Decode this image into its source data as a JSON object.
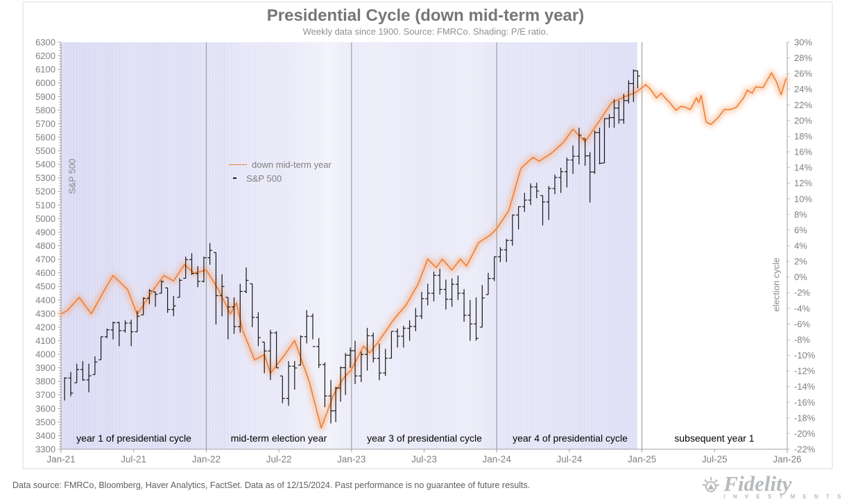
{
  "title": "Presidential Cycle (down mid-term year)",
  "subtitle": "Weekly data since 1900. Source: FMRCo. Shading: P/E ratio.",
  "footer": "Data source: FMRCo, Bloomberg, Haver Analytics, FactSet. Data as of 12/15/2024. Past performance is no guarantee of future results.",
  "brand": {
    "name": "Fidelity",
    "subtext": "I N V E S T M E N T S"
  },
  "legend": [
    {
      "label": "down mid-term year",
      "color": "#ee7f35",
      "type": "line"
    },
    {
      "label": "S&P 500",
      "color": "#1c1c1c",
      "type": "bar"
    }
  ],
  "colors": {
    "cycle_line": "#ee7f35",
    "cycle_glow": "#f7a468",
    "sp_bars": "#1c1c1c",
    "shade_dark": "#d6d6f3",
    "shade_light": "#f8f8fd",
    "divider": "#909090",
    "axis": "#a0a0a0",
    "tick_text": "#7f7f7f"
  },
  "chart_data": {
    "type": "line",
    "title": "Presidential Cycle (down mid-term year)",
    "subtitle": "Weekly data since 1900. Source: FMRCo. Shading: P/E ratio.",
    "x_axis": {
      "unit": "months since Jan-2021",
      "range": [
        0,
        60
      ],
      "tick_labels": [
        "Jan-21",
        "Jul-21",
        "Jan-22",
        "Jul-22",
        "Jan-23",
        "Jul-23",
        "Jan-24",
        "Jul-24",
        "Jan-25",
        "Jul-25",
        "Jan-26"
      ],
      "tick_positions": [
        0,
        6,
        12,
        18,
        24,
        30,
        36,
        42,
        48,
        54,
        60
      ]
    },
    "left_axis": {
      "label": "S&P 500",
      "min": 3300,
      "max": 6300,
      "tick_step": 100,
      "ticks": [
        6300,
        6200,
        6100,
        6000,
        5900,
        5800,
        5700,
        5600,
        5500,
        5400,
        5300,
        5200,
        5100,
        5000,
        4900,
        4800,
        4700,
        4600,
        4500,
        4400,
        4300,
        4200,
        4100,
        4000,
        3900,
        3800,
        3700,
        3600,
        3500,
        3400,
        3300
      ]
    },
    "right_axis": {
      "label": "election cycle",
      "min": -22,
      "max": 30,
      "tick_step": 2,
      "format": "percent",
      "ticks": [
        30,
        28,
        26,
        24,
        22,
        20,
        18,
        16,
        14,
        12,
        10,
        8,
        6,
        4,
        2,
        0,
        -2,
        -4,
        -6,
        -8,
        -10,
        -12,
        -14,
        -16,
        -18,
        -20,
        -22
      ]
    },
    "sections": [
      {
        "label": "year 1 of presidential cycle",
        "start": 0,
        "end": 12
      },
      {
        "label": "mid-term election year",
        "start": 12,
        "end": 24
      },
      {
        "label": "year 3 of presidential cycle",
        "start": 24,
        "end": 36
      },
      {
        "label": "year 4 of presidential cycle",
        "start": 36,
        "end": 48
      },
      {
        "label": "subsequent year 1",
        "start": 48,
        "end": 60
      }
    ],
    "shading": {
      "meaning": "P/E ratio (weekly, darker = higher)",
      "start": 0,
      "end": 47.6,
      "stops": [
        [
          0,
          0.8
        ],
        [
          1,
          0.9
        ],
        [
          2.5,
          0.82
        ],
        [
          4,
          0.86
        ],
        [
          6,
          0.72
        ],
        [
          7.5,
          0.8
        ],
        [
          9,
          0.7
        ],
        [
          10.5,
          0.76
        ],
        [
          12,
          0.62
        ],
        [
          13.5,
          0.68
        ],
        [
          15,
          0.52
        ],
        [
          17,
          0.46
        ],
        [
          18,
          0.5
        ],
        [
          19.5,
          0.36
        ],
        [
          21,
          0.28
        ],
        [
          22,
          0.18
        ],
        [
          23,
          0.3
        ],
        [
          24,
          0.38
        ],
        [
          26,
          0.33
        ],
        [
          28,
          0.42
        ],
        [
          30,
          0.48
        ],
        [
          32,
          0.4
        ],
        [
          34,
          0.36
        ],
        [
          36,
          0.55
        ],
        [
          38,
          0.6
        ],
        [
          40,
          0.58
        ],
        [
          42,
          0.66
        ],
        [
          44,
          0.7
        ],
        [
          46,
          0.74
        ],
        [
          47.6,
          0.78
        ]
      ]
    },
    "series": [
      {
        "name": "down mid-term year",
        "axis": "right",
        "style": "line-glow",
        "color": "#ee7f35",
        "points": [
          [
            0,
            -4.7
          ],
          [
            0.5,
            -4.3
          ],
          [
            1.5,
            -2.6
          ],
          [
            2.5,
            -4.7
          ],
          [
            3.5,
            -1.9
          ],
          [
            4.3,
            0.2
          ],
          [
            5.5,
            -1.6
          ],
          [
            6.3,
            -4.8
          ],
          [
            7.5,
            -1.9
          ],
          [
            8.5,
            0.2
          ],
          [
            9.3,
            -0.5
          ],
          [
            10.2,
            1.6
          ],
          [
            11,
            0.5
          ],
          [
            12,
            0.9
          ],
          [
            13,
            -1.6
          ],
          [
            14,
            -4.7
          ],
          [
            14.5,
            -3.3
          ],
          [
            15,
            -6.8
          ],
          [
            16,
            -10.6
          ],
          [
            16.8,
            -9.9
          ],
          [
            17.3,
            -12.3
          ],
          [
            18.5,
            -9.9
          ],
          [
            19.3,
            -8.1
          ],
          [
            20.5,
            -13.3
          ],
          [
            21.5,
            -19.3
          ],
          [
            22.5,
            -15.1
          ],
          [
            23.3,
            -13
          ],
          [
            24,
            -11.8
          ],
          [
            25,
            -8.8
          ],
          [
            25.5,
            -9.7
          ],
          [
            26.3,
            -8.1
          ],
          [
            27.5,
            -5.4
          ],
          [
            28.5,
            -3.6
          ],
          [
            29.5,
            -0.9
          ],
          [
            30.3,
            2.3
          ],
          [
            31,
            1.2
          ],
          [
            31.5,
            2.3
          ],
          [
            32.3,
            0.9
          ],
          [
            33,
            2.3
          ],
          [
            33.5,
            1.4
          ],
          [
            34.5,
            4.4
          ],
          [
            35.5,
            5.4
          ],
          [
            36,
            6.2
          ],
          [
            37,
            8.5
          ],
          [
            38,
            13.9
          ],
          [
            39,
            15.3
          ],
          [
            39.5,
            14.8
          ],
          [
            40.5,
            15.8
          ],
          [
            41.5,
            17.2
          ],
          [
            42.3,
            18.9
          ],
          [
            43.3,
            17.3
          ],
          [
            44.5,
            20
          ],
          [
            45.5,
            22.3
          ],
          [
            46.5,
            23
          ],
          [
            47.5,
            23.6
          ],
          [
            48,
            24.2
          ],
          [
            48.3,
            24.6
          ],
          [
            48.7,
            24
          ],
          [
            49.2,
            22.9
          ],
          [
            49.6,
            23.5
          ],
          [
            49.9,
            22.9
          ],
          [
            50.3,
            22.3
          ],
          [
            50.8,
            21.3
          ],
          [
            51.2,
            21.8
          ],
          [
            51.6,
            21.7
          ],
          [
            52,
            21.4
          ],
          [
            52.5,
            22.9
          ],
          [
            52.7,
            22.3
          ],
          [
            52.9,
            23.2
          ],
          [
            53.3,
            19.8
          ],
          [
            53.7,
            19.5
          ],
          [
            54.3,
            20.4
          ],
          [
            54.8,
            21.4
          ],
          [
            55.3,
            21.4
          ],
          [
            55.8,
            21.7
          ],
          [
            56.4,
            22.9
          ],
          [
            56.7,
            23.9
          ],
          [
            57.1,
            23.5
          ],
          [
            57.4,
            24.3
          ],
          [
            58,
            24.2
          ],
          [
            58.7,
            26.1
          ],
          [
            59.1,
            25
          ],
          [
            59.5,
            23.3
          ],
          [
            59.9,
            25.4
          ]
        ]
      },
      {
        "name": "S&P 500",
        "axis": "left",
        "style": "hlc-bars",
        "color": "#1c1c1c",
        "bar_week_offset": 0.3,
        "bars": [
          [
            0,
            3660,
            3830,
            3825
          ],
          [
            0.5,
            3690,
            3870,
            3714
          ],
          [
            1,
            3790,
            3930,
            3887
          ],
          [
            1.5,
            3805,
            3950,
            3811
          ],
          [
            2,
            3720,
            3930,
            3841
          ],
          [
            2.5,
            3850,
            3985,
            3943
          ],
          [
            3,
            3960,
            4130,
            4129
          ],
          [
            3.5,
            4120,
            4190,
            4180
          ],
          [
            4,
            4110,
            4240,
            4233
          ],
          [
            4.5,
            4060,
            4240,
            4174
          ],
          [
            5,
            4160,
            4250,
            4230
          ],
          [
            5.5,
            4060,
            4255,
            4166
          ],
          [
            6,
            4165,
            4320,
            4280
          ],
          [
            6.5,
            4290,
            4420,
            4412
          ],
          [
            7,
            4370,
            4480,
            4468
          ],
          [
            7.5,
            4350,
            4460,
            4442
          ],
          [
            8,
            4450,
            4545,
            4536
          ],
          [
            8.5,
            4306,
            4490,
            4330
          ],
          [
            9,
            4280,
            4430,
            4357
          ],
          [
            9.5,
            4420,
            4560,
            4545
          ],
          [
            10,
            4560,
            4720,
            4698
          ],
          [
            10.5,
            4585,
            4745,
            4595
          ],
          [
            11,
            4495,
            4650,
            4538
          ],
          [
            11.5,
            4530,
            4720,
            4712
          ],
          [
            12,
            4660,
            4820,
            4766
          ],
          [
            12.5,
            4220,
            4750,
            4432
          ],
          [
            13,
            4280,
            4590,
            4500
          ],
          [
            13.5,
            4110,
            4420,
            4349
          ],
          [
            14,
            4150,
            4420,
            4204
          ],
          [
            14.5,
            4160,
            4520,
            4463
          ],
          [
            15,
            4450,
            4640,
            4545
          ],
          [
            15.5,
            4200,
            4520,
            4272
          ],
          [
            16,
            4060,
            4310,
            4123
          ],
          [
            16.5,
            3860,
            4090,
            4024
          ],
          [
            17,
            3810,
            4180,
            4158
          ],
          [
            17.5,
            3900,
            4170,
            3900
          ],
          [
            18,
            3640,
            3840,
            3675
          ],
          [
            18.5,
            3620,
            3950,
            3912
          ],
          [
            19,
            3740,
            3950,
            3899
          ],
          [
            19.5,
            3920,
            4140,
            4130
          ],
          [
            20,
            4080,
            4325,
            4280
          ],
          [
            20.5,
            4110,
            4300,
            4057
          ],
          [
            21,
            3900,
            4120,
            3924
          ],
          [
            21.5,
            3610,
            3940,
            3693
          ],
          [
            22,
            3490,
            3810,
            3583
          ],
          [
            22.4,
            3500,
            3760,
            3752
          ],
          [
            22.8,
            3650,
            3910,
            3901
          ],
          [
            23.2,
            3700,
            4010,
            3993
          ],
          [
            23.6,
            3900,
            4050,
            4026
          ],
          [
            24,
            3780,
            4100,
            3840
          ],
          [
            24.5,
            3795,
            4020,
            3999
          ],
          [
            25,
            3880,
            4195,
            4136
          ],
          [
            25.5,
            3940,
            4160,
            3970
          ],
          [
            26,
            3809,
            4080,
            3862
          ],
          [
            26.5,
            3840,
            4040,
            3971
          ],
          [
            27,
            3970,
            4170,
            4169
          ],
          [
            27.5,
            4050,
            4190,
            4133
          ],
          [
            28,
            4050,
            4210,
            4192
          ],
          [
            28.5,
            4100,
            4250,
            4205
          ],
          [
            29,
            4170,
            4340,
            4282
          ],
          [
            29.5,
            4260,
            4460,
            4410
          ],
          [
            30,
            4360,
            4520,
            4450
          ],
          [
            30.5,
            4390,
            4610,
            4582
          ],
          [
            31,
            4440,
            4630,
            4478
          ],
          [
            31.5,
            4330,
            4550,
            4406
          ],
          [
            32,
            4350,
            4560,
            4516
          ],
          [
            32.5,
            4400,
            4580,
            4450
          ],
          [
            33,
            4240,
            4480,
            4288
          ],
          [
            33.5,
            4100,
            4400,
            4224
          ],
          [
            34,
            4100,
            4420,
            4117
          ],
          [
            34.5,
            4200,
            4510,
            4415
          ],
          [
            35,
            4440,
            4600,
            4559
          ],
          [
            35.5,
            4540,
            4720,
            4719
          ],
          [
            36,
            4680,
            4790,
            4770
          ],
          [
            36.5,
            4680,
            4850,
            4840
          ],
          [
            37,
            4800,
            5030,
            5027
          ],
          [
            37.5,
            4920,
            5090,
            5088
          ],
          [
            38,
            5050,
            5190,
            5137
          ],
          [
            38.5,
            5100,
            5260,
            5234
          ],
          [
            39,
            5150,
            5265,
            5204
          ],
          [
            39.5,
            4950,
            5170,
            5123
          ],
          [
            40,
            4990,
            5240,
            5222
          ],
          [
            40.5,
            5180,
            5325,
            5303
          ],
          [
            41,
            5190,
            5375,
            5346
          ],
          [
            41.5,
            5230,
            5450,
            5432
          ],
          [
            42,
            5330,
            5540,
            5460
          ],
          [
            42.5,
            5400,
            5670,
            5615
          ],
          [
            43,
            5390,
            5590,
            5463
          ],
          [
            43.4,
            5119,
            5490,
            5344
          ],
          [
            43.8,
            5330,
            5650,
            5634
          ],
          [
            44.2,
            5400,
            5670,
            5408
          ],
          [
            44.6,
            5410,
            5740,
            5738
          ],
          [
            45,
            5670,
            5770,
            5745
          ],
          [
            45.4,
            5670,
            5880,
            5815
          ],
          [
            45.8,
            5700,
            5870,
            5728
          ],
          [
            46.2,
            5700,
            5920,
            5870
          ],
          [
            46.6,
            5850,
            6020,
            5996
          ],
          [
            47,
            5860,
            6100,
            6090
          ],
          [
            47.35,
            5960,
            6090,
            6051
          ]
        ]
      }
    ]
  }
}
